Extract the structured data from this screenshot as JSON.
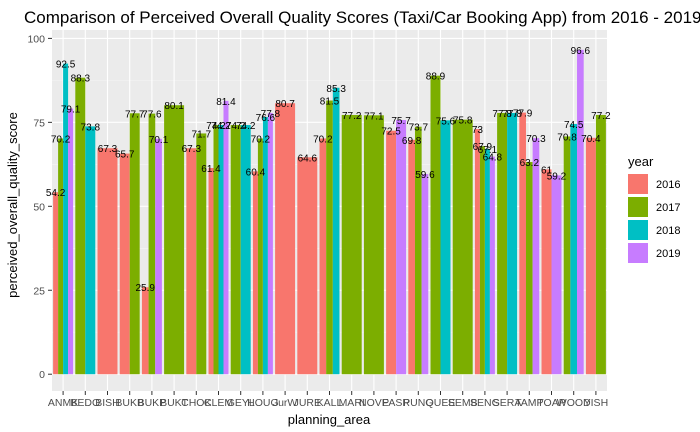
{
  "chart_data": {
    "type": "bar",
    "title": "Comparison of Perceived Overall Quality Scores (Taxi/Car Booking App) from 2016 - 2019",
    "xlabel": "planning_area",
    "ylabel": "perceived_overall_quality_score",
    "ylim": [
      0,
      100
    ],
    "yticks": [
      0,
      25,
      50,
      75,
      100
    ],
    "grid": true,
    "legend_title": "year",
    "legend_position": "right",
    "categories": [
      "ANMK",
      "BEDO",
      "BISH",
      "BUKB",
      "BUKP",
      "BUKT",
      "CHOK",
      "CLEM",
      "GEYL",
      "HOUG",
      "JurW",
      "JURE",
      "KALL",
      "MARI",
      "NOVE",
      "PASR",
      "PUNG",
      "QUEE",
      "SEMB",
      "SENG",
      "SERA",
      "TAMP",
      "TOAP",
      "WOOD",
      "YISH"
    ],
    "series": [
      {
        "name": "2016",
        "color": "#F8766D",
        "values": [
          54.2,
          null,
          67.3,
          65.7,
          25.9,
          null,
          67.3,
          61.4,
          null,
          60.4,
          80.7,
          64.6,
          70.2,
          null,
          null,
          72.5,
          69.8,
          null,
          null,
          73,
          null,
          77.9,
          61,
          null,
          70.4
        ]
      },
      {
        "name": "2017",
        "color": "#7CAE00",
        "values": [
          70.2,
          88.3,
          null,
          77.7,
          77.6,
          80.1,
          71.7,
          74.2,
          74.2,
          70.2,
          null,
          null,
          81.5,
          77.2,
          77.1,
          null,
          73.7,
          88.9,
          75.8,
          67.9,
          77.8,
          63.2,
          null,
          70.8,
          77.2
        ]
      },
      {
        "name": "2018",
        "color": "#00BFC4",
        "values": [
          92.5,
          73.8,
          null,
          null,
          null,
          null,
          null,
          74.2,
          74.2,
          76.6,
          null,
          null,
          85.3,
          null,
          null,
          null,
          null,
          75.6,
          null,
          67.1,
          77.8,
          null,
          null,
          74.5,
          null
        ]
      },
      {
        "name": "2019",
        "color": "#C77CFF",
        "values": [
          79.1,
          null,
          null,
          null,
          70.1,
          null,
          null,
          81.4,
          null,
          77.8,
          null,
          null,
          null,
          null,
          null,
          75.7,
          59.6,
          null,
          null,
          64.8,
          null,
          70.3,
          59.2,
          96.6,
          null
        ]
      }
    ]
  }
}
